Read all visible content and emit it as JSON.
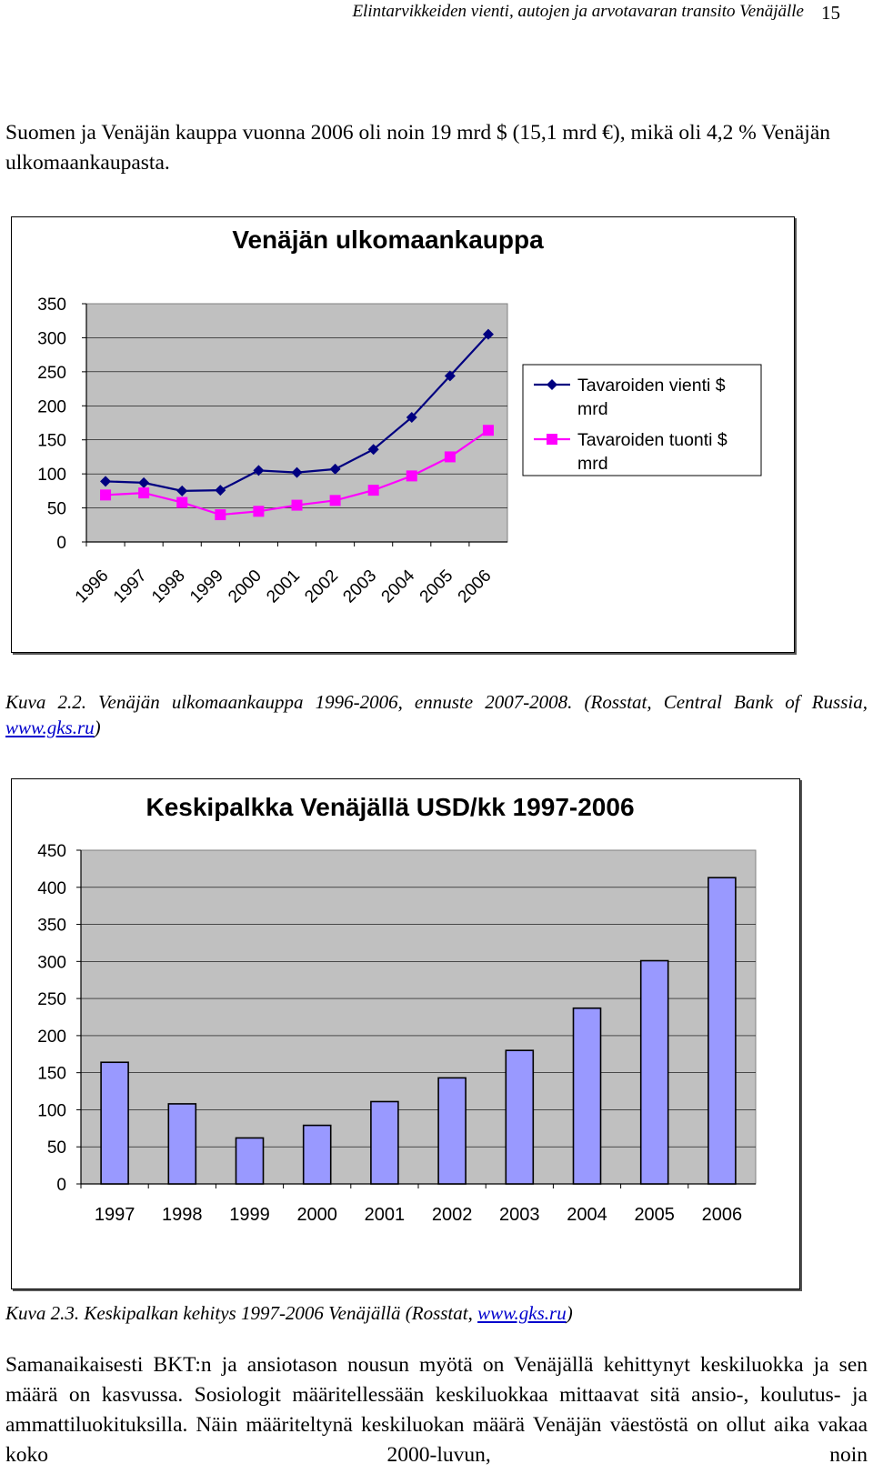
{
  "header": {
    "running_title": "Elintarvikkeiden vienti, autojen ja arvotavaran transito Venäjälle",
    "page_number": "15"
  },
  "intro_paragraph": "Suomen ja Venäjän kauppa vuonna 2006 oli noin 19 mrd $ (15,1 mrd €), mikä oli 4,2 % Venäjän ulkomaankaupasta.",
  "figure1": {
    "caption_prefix": "Kuva 2.2. Venäjän ulkomaankauppa 1996-2006, ennuste 2007-2008. (Rosstat, Central Bank of Russia, ",
    "caption_link": "www.gks.ru",
    "caption_suffix": ")"
  },
  "figure2": {
    "caption_prefix": "Kuva 2.3. Keskipalkan kehitys 1997-2006 Venäjällä (Rosstat, ",
    "caption_link": "www.gks.ru",
    "caption_suffix": ")"
  },
  "closing_paragraph": "Samanaikaisesti BKT:n ja ansiotason nousun myötä on Venäjällä kehittynyt keskiluokka ja sen määrä on kasvussa. Sosiologit määritellessään keskiluokkaa mittaavat sitä ansio-, koulutus- ja ammattiluokituksilla. Näin määriteltynä keskiluokan määrä Venäjän väestöstä on ollut aika vakaa koko 2000-luvun, noin",
  "chart_data": [
    {
      "type": "line",
      "title": "Venäjän ulkomaankauppa",
      "categories": [
        "1996",
        "1997",
        "1998",
        "1999",
        "2000",
        "2001",
        "2002",
        "2003",
        "2004",
        "2005",
        "2006"
      ],
      "series": [
        {
          "name": "Tavaroiden vienti $ mrd",
          "color": "#000080",
          "marker": "diamond",
          "values": [
            89,
            87,
            75,
            76,
            105,
            102,
            107,
            136,
            183,
            244,
            305
          ]
        },
        {
          "name": "Tavaroiden tuonti $ mrd",
          "color": "#ff00ff",
          "marker": "square",
          "values": [
            69,
            72,
            58,
            40,
            45,
            54,
            61,
            76,
            97,
            125,
            164
          ]
        }
      ],
      "ylim": [
        0,
        350
      ],
      "yticks": [
        0,
        50,
        100,
        150,
        200,
        250,
        300,
        350
      ],
      "grid": true,
      "plot_background": "#c0c0c0",
      "legend_position": "right"
    },
    {
      "type": "bar",
      "title": "Keskipalkka Venäjällä  USD/kk 1997-2006",
      "categories": [
        "1997",
        "1998",
        "1999",
        "2000",
        "2001",
        "2002",
        "2003",
        "2004",
        "2005",
        "2006"
      ],
      "values": [
        164,
        108,
        62,
        79,
        111,
        143,
        180,
        237,
        301,
        413
      ],
      "bar_color": "#9999ff",
      "ylim": [
        0,
        450
      ],
      "yticks": [
        0,
        50,
        100,
        150,
        200,
        250,
        300,
        350,
        400,
        450
      ],
      "grid": true,
      "plot_background": "#c0c0c0"
    }
  ]
}
